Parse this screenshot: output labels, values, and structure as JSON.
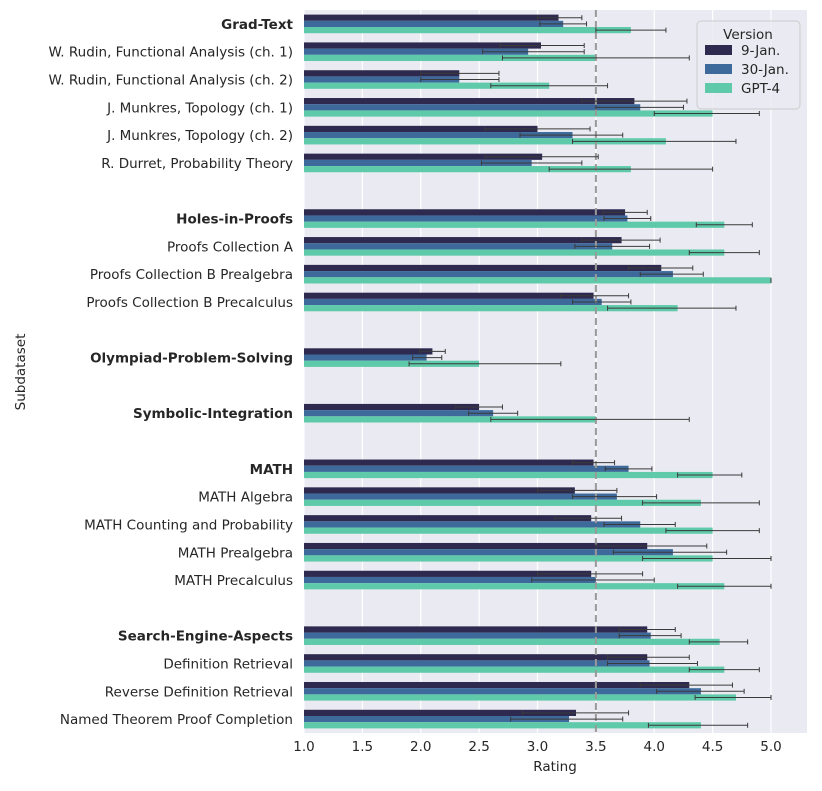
{
  "chart_data": {
    "type": "bar",
    "orientation": "horizontal",
    "title": "",
    "xlabel": "Rating",
    "ylabel": "Subdataset",
    "xlim": [
      1.0,
      5.3
    ],
    "xticks": [
      "1.0",
      "1.5",
      "2.0",
      "2.5",
      "3.0",
      "3.5",
      "4.0",
      "4.5",
      "5.0"
    ],
    "grid": true,
    "reference_line": 3.5,
    "legend": {
      "title": "Version",
      "placement": "top-right"
    },
    "series": [
      {
        "name": "9-Jan.",
        "color": "#2e2a4f"
      },
      {
        "name": "30-Jan.",
        "color": "#3d6a9b"
      },
      {
        "name": "GPT-4",
        "color": "#5fcaa9"
      }
    ],
    "groups": [
      {
        "name": "Grad-Text",
        "bold": true,
        "values": [
          3.18,
          3.22,
          3.8
        ],
        "errors": [
          [
            3.0,
            3.38
          ],
          [
            3.02,
            3.42
          ],
          [
            3.5,
            4.1
          ]
        ]
      },
      {
        "name": "W. Rudin, Functional Analysis (ch. 1)",
        "bold": false,
        "values": [
          3.03,
          2.92,
          3.5
        ],
        "errors": [
          [
            2.68,
            3.4
          ],
          [
            2.53,
            3.4
          ],
          [
            2.7,
            4.3
          ]
        ]
      },
      {
        "name": "W. Rudin, Functional Analysis (ch. 2)",
        "bold": false,
        "values": [
          2.33,
          2.33,
          3.1
        ],
        "errors": [
          [
            2.0,
            2.67
          ],
          [
            2.0,
            2.67
          ],
          [
            2.6,
            3.6
          ]
        ]
      },
      {
        "name": "J. Munkres, Topology (ch. 1)",
        "bold": false,
        "values": [
          3.83,
          3.88,
          4.5
        ],
        "errors": [
          [
            3.38,
            4.28
          ],
          [
            3.5,
            4.25
          ],
          [
            4.0,
            4.9
          ]
        ]
      },
      {
        "name": "J. Munkres, Topology (ch. 2)",
        "bold": false,
        "values": [
          3.0,
          3.3,
          4.1
        ],
        "errors": [
          [
            2.55,
            3.45
          ],
          [
            2.85,
            3.73
          ],
          [
            3.3,
            4.7
          ]
        ]
      },
      {
        "name": "R. Durret, Probability Theory",
        "bold": false,
        "values": [
          3.04,
          2.95,
          3.8
        ],
        "errors": [
          [
            2.55,
            3.52
          ],
          [
            2.52,
            3.38
          ],
          [
            3.1,
            4.5
          ]
        ]
      },
      {
        "name": "",
        "spacer": true
      },
      {
        "name": "Holes-in-Proofs",
        "bold": true,
        "values": [
          3.75,
          3.77,
          4.6
        ],
        "errors": [
          [
            3.56,
            3.94
          ],
          [
            3.57,
            3.97
          ],
          [
            4.36,
            4.84
          ]
        ]
      },
      {
        "name": "Proofs Collection A",
        "bold": false,
        "values": [
          3.72,
          3.64,
          4.6
        ],
        "errors": [
          [
            3.38,
            4.05
          ],
          [
            3.32,
            3.96
          ],
          [
            4.3,
            4.9
          ]
        ]
      },
      {
        "name": "Proofs Collection B Prealgebra",
        "bold": false,
        "values": [
          4.06,
          4.16,
          5.0
        ],
        "errors": [
          [
            3.78,
            4.33
          ],
          [
            3.88,
            4.42
          ],
          [
            5.0,
            5.0
          ]
        ]
      },
      {
        "name": "Proofs Collection B Precalculus",
        "bold": false,
        "values": [
          3.48,
          3.55,
          4.2
        ],
        "errors": [
          [
            3.2,
            3.78
          ],
          [
            3.3,
            3.8
          ],
          [
            3.6,
            4.7
          ]
        ]
      },
      {
        "name": "",
        "spacer": true
      },
      {
        "name": "Olympiad-Problem-Solving",
        "bold": true,
        "values": [
          2.1,
          2.05,
          2.5
        ],
        "errors": [
          [
            1.99,
            2.21
          ],
          [
            1.93,
            2.18
          ],
          [
            1.9,
            3.2
          ]
        ]
      },
      {
        "name": "",
        "spacer": true
      },
      {
        "name": "Symbolic-Integration",
        "bold": true,
        "values": [
          2.5,
          2.62,
          3.5
        ],
        "errors": [
          [
            2.3,
            2.7
          ],
          [
            2.41,
            2.83
          ],
          [
            2.6,
            4.3
          ]
        ]
      },
      {
        "name": "",
        "spacer": true
      },
      {
        "name": "MATH",
        "bold": true,
        "values": [
          3.48,
          3.78,
          4.5
        ],
        "errors": [
          [
            3.3,
            3.66
          ],
          [
            3.58,
            3.98
          ],
          [
            4.2,
            4.75
          ]
        ]
      },
      {
        "name": "MATH Algebra",
        "bold": false,
        "values": [
          3.32,
          3.68,
          4.4
        ],
        "errors": [
          [
            3.0,
            3.68
          ],
          [
            3.3,
            4.02
          ],
          [
            3.9,
            4.9
          ]
        ]
      },
      {
        "name": "MATH Counting and Probability",
        "bold": false,
        "values": [
          3.46,
          3.88,
          4.5
        ],
        "errors": [
          [
            3.15,
            3.72
          ],
          [
            3.57,
            4.18
          ],
          [
            4.1,
            4.9
          ]
        ]
      },
      {
        "name": "MATH Prealgebra",
        "bold": false,
        "values": [
          3.94,
          4.16,
          4.5
        ],
        "errors": [
          [
            3.5,
            4.45
          ],
          [
            3.65,
            4.62
          ],
          [
            3.9,
            5.0
          ]
        ]
      },
      {
        "name": "MATH Precalculus",
        "bold": false,
        "values": [
          3.46,
          3.5,
          4.6
        ],
        "errors": [
          [
            3.0,
            3.9
          ],
          [
            2.95,
            4.0
          ],
          [
            4.2,
            5.0
          ]
        ]
      },
      {
        "name": "",
        "spacer": true
      },
      {
        "name": "Search-Engine-Aspects",
        "bold": true,
        "values": [
          3.94,
          3.97,
          4.56
        ],
        "errors": [
          [
            3.7,
            4.18
          ],
          [
            3.7,
            4.23
          ],
          [
            4.3,
            4.8
          ]
        ]
      },
      {
        "name": "Definition Retrieval",
        "bold": false,
        "values": [
          3.94,
          3.96,
          4.6
        ],
        "errors": [
          [
            3.6,
            4.3
          ],
          [
            3.6,
            4.37
          ],
          [
            4.3,
            4.9
          ]
        ]
      },
      {
        "name": "Reverse Definition Retrieval",
        "bold": false,
        "values": [
          4.3,
          4.4,
          4.7
        ],
        "errors": [
          [
            3.88,
            4.67
          ],
          [
            4.02,
            4.77
          ],
          [
            4.35,
            5.0
          ]
        ]
      },
      {
        "name": "Named Theorem Proof Completion",
        "bold": false,
        "values": [
          3.33,
          3.27,
          4.4
        ],
        "errors": [
          [
            2.87,
            3.78
          ],
          [
            2.77,
            3.73
          ],
          [
            3.95,
            4.8
          ]
        ]
      }
    ]
  }
}
